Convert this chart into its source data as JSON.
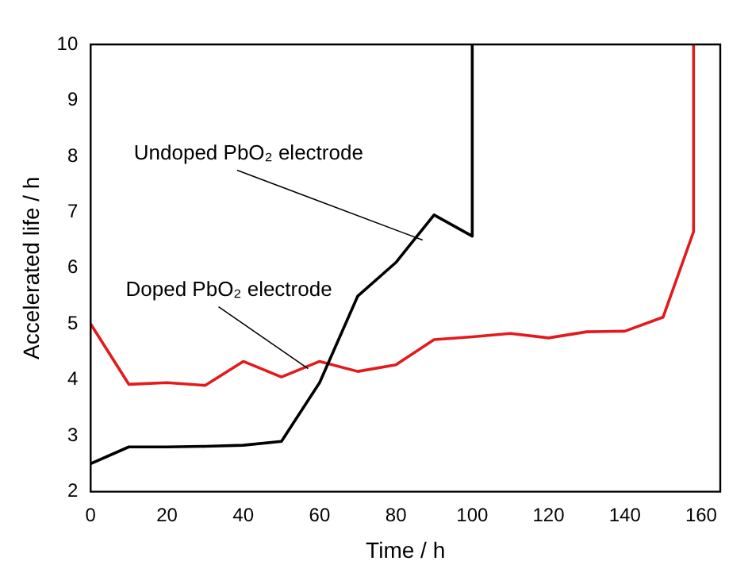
{
  "chart_data": {
    "type": "line",
    "xlabel": "Time / h",
    "ylabel": "Accelerated life / h",
    "xlim": [
      0,
      165
    ],
    "xticks": [
      0,
      20,
      40,
      60,
      80,
      100,
      120,
      140,
      160
    ],
    "ylim": [
      2,
      10
    ],
    "yticks": [
      2,
      3,
      4,
      5,
      6,
      7,
      8,
      9,
      10
    ],
    "grid": false,
    "legend": false,
    "marker": "none",
    "series": [
      {
        "color": "#000000",
        "x": [
          0,
          10,
          20,
          30,
          40,
          50,
          60,
          70,
          80,
          90,
          100,
          100
        ],
        "values": [
          2.5,
          2.8,
          2.8,
          2.81,
          2.83,
          2.9,
          3.95,
          5.5,
          6.1,
          6.95,
          6.57,
          10
        ]
      },
      {
        "color": "#e31a1c",
        "x": [
          0,
          10,
          20,
          30,
          40,
          50,
          60,
          70,
          80,
          90,
          100,
          110,
          120,
          130,
          140,
          150,
          158,
          158
        ],
        "values": [
          5.0,
          3.92,
          3.95,
          3.9,
          4.33,
          4.05,
          4.33,
          4.15,
          4.27,
          4.72,
          4.77,
          4.83,
          4.75,
          4.86,
          4.87,
          5.12,
          6.65,
          10
        ]
      }
    ],
    "annotations": [
      {
        "text": "Undoped PbO₂ electrode",
        "x": 87,
        "y": 6.5
      },
      {
        "text": "Doped PbO₂ electrode",
        "x": 57,
        "y": 4.2
      }
    ]
  }
}
